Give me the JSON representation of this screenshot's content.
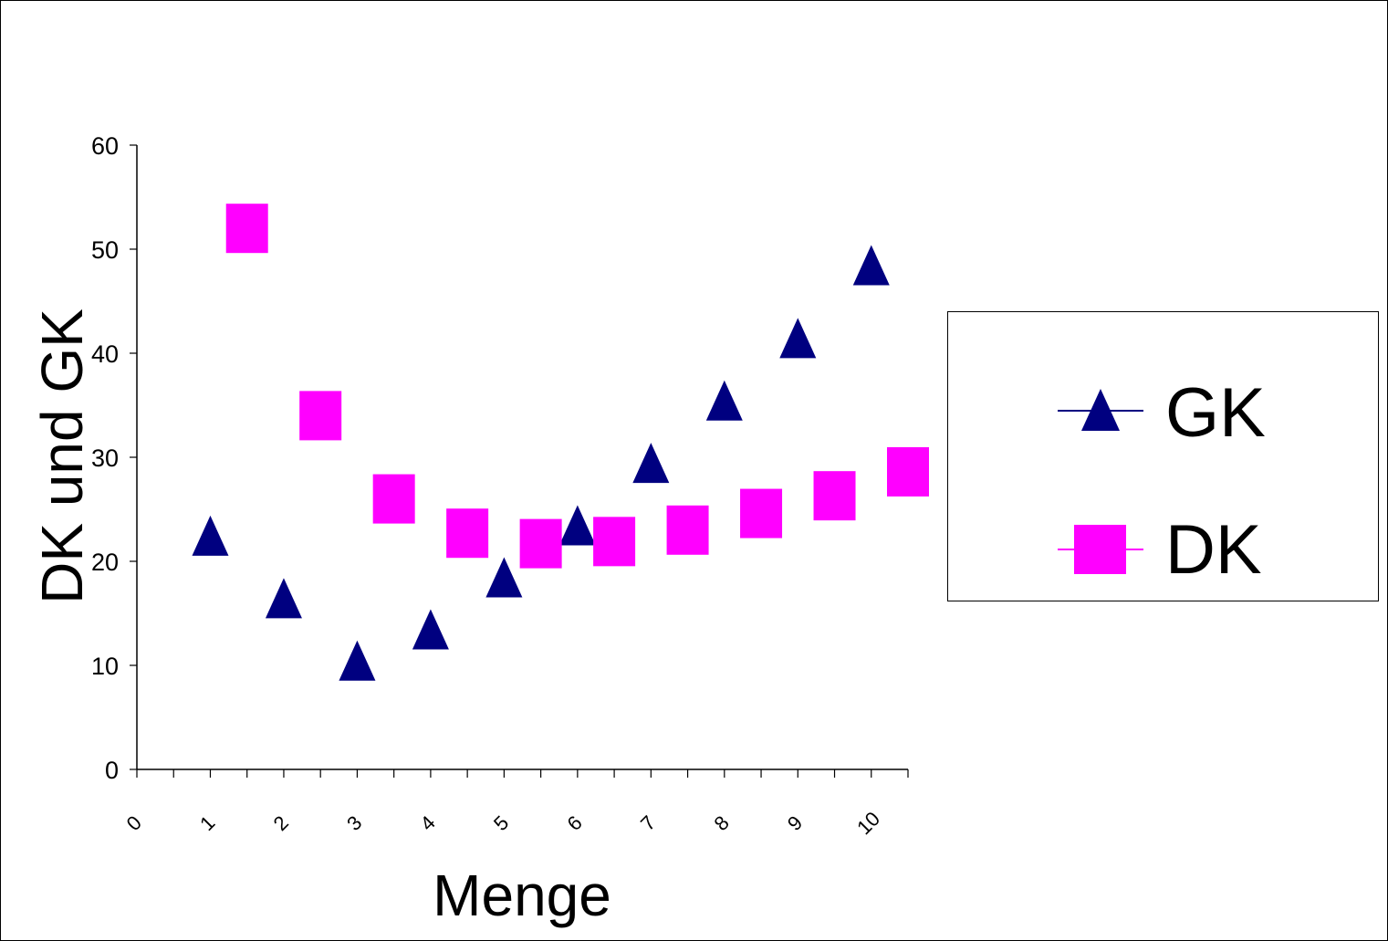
{
  "chart_data": {
    "type": "scatter",
    "title": "",
    "xlabel": "Menge",
    "ylabel": "DK und GK",
    "xlim": [
      0,
      10.5
    ],
    "ylim": [
      0,
      60
    ],
    "x_ticks": [
      "0",
      "1",
      "2",
      "3",
      "4",
      "5",
      "6",
      "7",
      "8",
      "9",
      "10"
    ],
    "y_ticks": [
      "0",
      "10",
      "20",
      "30",
      "40",
      "50",
      "60"
    ],
    "grid": false,
    "legend_position": "right",
    "series": [
      {
        "name": "GK",
        "marker": "triangle",
        "color": "#000080",
        "x": [
          1,
          2,
          3,
          4,
          5,
          6,
          7,
          8,
          9,
          10
        ],
        "y": [
          22,
          16,
          10,
          13,
          18,
          23,
          29,
          35,
          41,
          48
        ]
      },
      {
        "name": "DK",
        "marker": "square",
        "color": "#FF00FF",
        "x": [
          1.5,
          2.5,
          3.5,
          4.5,
          5.5,
          6.5,
          7.5,
          8.5,
          9.5,
          10.5
        ],
        "y": [
          52,
          34,
          26,
          22.7,
          21.7,
          21.9,
          23,
          24.6,
          26.3,
          28.6
        ]
      }
    ]
  }
}
